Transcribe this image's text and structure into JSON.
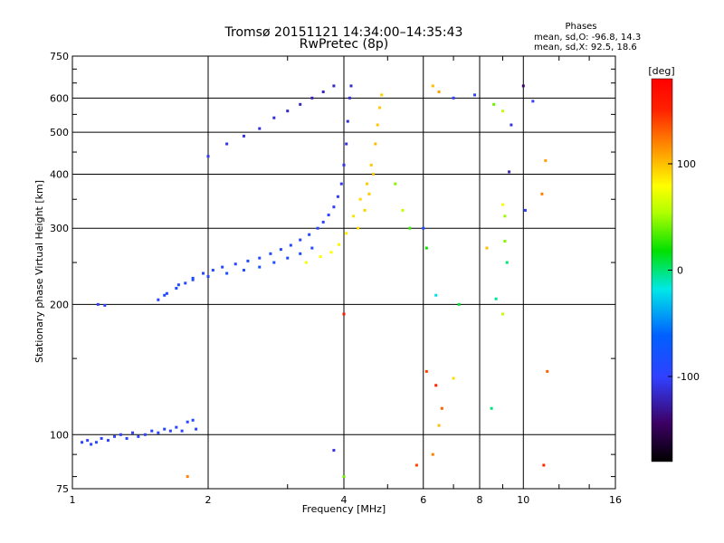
{
  "title": {
    "line1": "Tromsø 20151121 14:34:00–14:35:43",
    "line2": "RwPretec (8p)"
  },
  "stats": {
    "heading": "Phases",
    "o_mode": "mean, sd,O: -96.8, 14.3",
    "x_mode": "mean, sd,X:  92.5, 18.6"
  },
  "chart_data": {
    "type": "scatter",
    "title": "Tromsø 20151121 14:34:00–14:35:43",
    "subtitle": "RwPretec (8p)",
    "xlabel": "Frequency [MHz]",
    "ylabel": "Stationary phase Virtual Height [km]",
    "xscale": "log",
    "yscale": "log",
    "xlim": [
      1,
      16
    ],
    "ylim": [
      75,
      750
    ],
    "xticks": [
      1,
      2,
      4,
      6,
      8,
      10,
      16
    ],
    "yticks": [
      75,
      100,
      200,
      300,
      400,
      500,
      600,
      750
    ],
    "grid": true,
    "color_by": "phase [deg]",
    "colorbar": {
      "label": "[deg]",
      "range": [
        -180,
        180
      ],
      "ticks": [
        100,
        0,
        -100
      ]
    },
    "series": [
      {
        "points": [
          [
            1.05,
            96,
            -95
          ],
          [
            1.08,
            97,
            -100
          ],
          [
            1.1,
            95,
            -98
          ],
          [
            1.13,
            96,
            -92
          ],
          [
            1.16,
            98,
            -97
          ],
          [
            1.2,
            97,
            -101
          ],
          [
            1.24,
            99,
            -94
          ],
          [
            1.28,
            100,
            -99
          ],
          [
            1.32,
            98,
            -96
          ],
          [
            1.36,
            101,
            -103
          ],
          [
            1.4,
            99,
            -97
          ],
          [
            1.45,
            100,
            -95
          ],
          [
            1.5,
            102,
            -98
          ],
          [
            1.55,
            101,
            -100
          ],
          [
            1.6,
            103,
            -92
          ],
          [
            1.65,
            102,
            -99
          ],
          [
            1.7,
            104,
            -96
          ],
          [
            1.75,
            102,
            -101
          ],
          [
            1.8,
            107,
            -94
          ],
          [
            1.85,
            108,
            -88
          ],
          [
            1.88,
            103,
            -95
          ],
          [
            1.14,
            200,
            -100
          ],
          [
            1.18,
            199,
            -97
          ],
          [
            1.55,
            205,
            -98
          ],
          [
            1.62,
            212,
            -95
          ],
          [
            1.7,
            218,
            -92
          ],
          [
            1.78,
            224,
            -96
          ],
          [
            1.85,
            230,
            -90
          ],
          [
            1.95,
            236,
            -93
          ],
          [
            2.05,
            240,
            -95
          ],
          [
            2.15,
            244,
            -91
          ],
          [
            2.3,
            248,
            -96
          ],
          [
            2.45,
            252,
            -88
          ],
          [
            2.6,
            256,
            -93
          ],
          [
            2.75,
            262,
            -90
          ],
          [
            2.9,
            268,
            -95
          ],
          [
            3.05,
            274,
            -91
          ],
          [
            3.2,
            282,
            -94
          ],
          [
            3.35,
            290,
            -92
          ],
          [
            3.5,
            300,
            -95
          ],
          [
            3.6,
            310,
            -97
          ],
          [
            3.7,
            322,
            -100
          ],
          [
            3.8,
            336,
            -102
          ],
          [
            3.88,
            355,
            -104
          ],
          [
            3.95,
            380,
            -106
          ],
          [
            4.0,
            420,
            -108
          ],
          [
            4.05,
            470,
            -110
          ],
          [
            4.08,
            530,
            -112
          ],
          [
            4.12,
            600,
            -114
          ],
          [
            4.15,
            640,
            -115
          ],
          [
            1.6,
            210,
            -90
          ],
          [
            1.72,
            222,
            -86
          ],
          [
            1.85,
            228,
            -84
          ],
          [
            2.0,
            232,
            -88
          ],
          [
            2.2,
            236,
            -80
          ],
          [
            2.4,
            240,
            -85
          ],
          [
            2.6,
            244,
            -78
          ],
          [
            2.8,
            250,
            -82
          ],
          [
            3.0,
            256,
            -90
          ],
          [
            3.2,
            262,
            -85
          ],
          [
            3.4,
            270,
            -88
          ],
          [
            2.0,
            440,
            -105
          ],
          [
            2.2,
            470,
            -108
          ],
          [
            2.4,
            490,
            -110
          ],
          [
            2.6,
            510,
            -112
          ],
          [
            2.8,
            540,
            -114
          ],
          [
            3.0,
            560,
            -116
          ],
          [
            3.2,
            580,
            -118
          ],
          [
            3.4,
            600,
            -120
          ],
          [
            3.6,
            620,
            -118
          ],
          [
            3.8,
            640,
            -116
          ],
          [
            3.3,
            250,
            75
          ],
          [
            3.55,
            258,
            80
          ],
          [
            3.75,
            264,
            78
          ],
          [
            3.9,
            275,
            82
          ],
          [
            4.05,
            292,
            85
          ],
          [
            4.2,
            320,
            88
          ],
          [
            4.35,
            350,
            92
          ],
          [
            4.5,
            380,
            95
          ],
          [
            4.6,
            420,
            97
          ],
          [
            4.7,
            470,
            100
          ],
          [
            4.75,
            520,
            98
          ],
          [
            4.8,
            570,
            96
          ],
          [
            4.85,
            610,
            95
          ],
          [
            4.3,
            300,
            90
          ],
          [
            4.45,
            330,
            94
          ],
          [
            4.55,
            360,
            96
          ],
          [
            4.65,
            400,
            99
          ],
          [
            5.2,
            380,
            45
          ],
          [
            5.4,
            330,
            60
          ],
          [
            5.6,
            300,
            30
          ],
          [
            6.1,
            270,
            20
          ],
          [
            6.3,
            640,
            100
          ],
          [
            6.5,
            620,
            110
          ],
          [
            7.0,
            600,
            -100
          ],
          [
            7.8,
            610,
            -95
          ],
          [
            8.6,
            580,
            40
          ],
          [
            9.0,
            560,
            60
          ],
          [
            9.4,
            520,
            -110
          ],
          [
            10.0,
            640,
            -140
          ],
          [
            10.5,
            590,
            -100
          ],
          [
            11.2,
            430,
            110
          ],
          [
            11.0,
            360,
            120
          ],
          [
            9.0,
            340,
            80
          ],
          [
            9.1,
            320,
            50
          ],
          [
            6.1,
            140,
            140
          ],
          [
            6.4,
            130,
            150
          ],
          [
            6.6,
            115,
            130
          ],
          [
            6.5,
            105,
            100
          ],
          [
            7.0,
            135,
            90
          ],
          [
            6.3,
            90,
            120
          ],
          [
            5.8,
            85,
            140
          ],
          [
            8.3,
            270,
            100
          ],
          [
            9.1,
            280,
            45
          ],
          [
            9.2,
            250,
            0
          ],
          [
            9.0,
            190,
            60
          ],
          [
            8.5,
            115,
            0
          ],
          [
            10.1,
            330,
            -100
          ],
          [
            11.1,
            85,
            150
          ],
          [
            11.3,
            140,
            130
          ],
          [
            4.0,
            190,
            160
          ],
          [
            3.8,
            92,
            -110
          ],
          [
            4.0,
            80,
            40
          ],
          [
            1.8,
            80,
            120
          ],
          [
            6.0,
            300,
            -90
          ],
          [
            6.4,
            210,
            -20
          ],
          [
            7.2,
            200,
            10
          ],
          [
            8.7,
            206,
            -5
          ],
          [
            9.3,
            405,
            -120
          ]
        ]
      }
    ]
  }
}
